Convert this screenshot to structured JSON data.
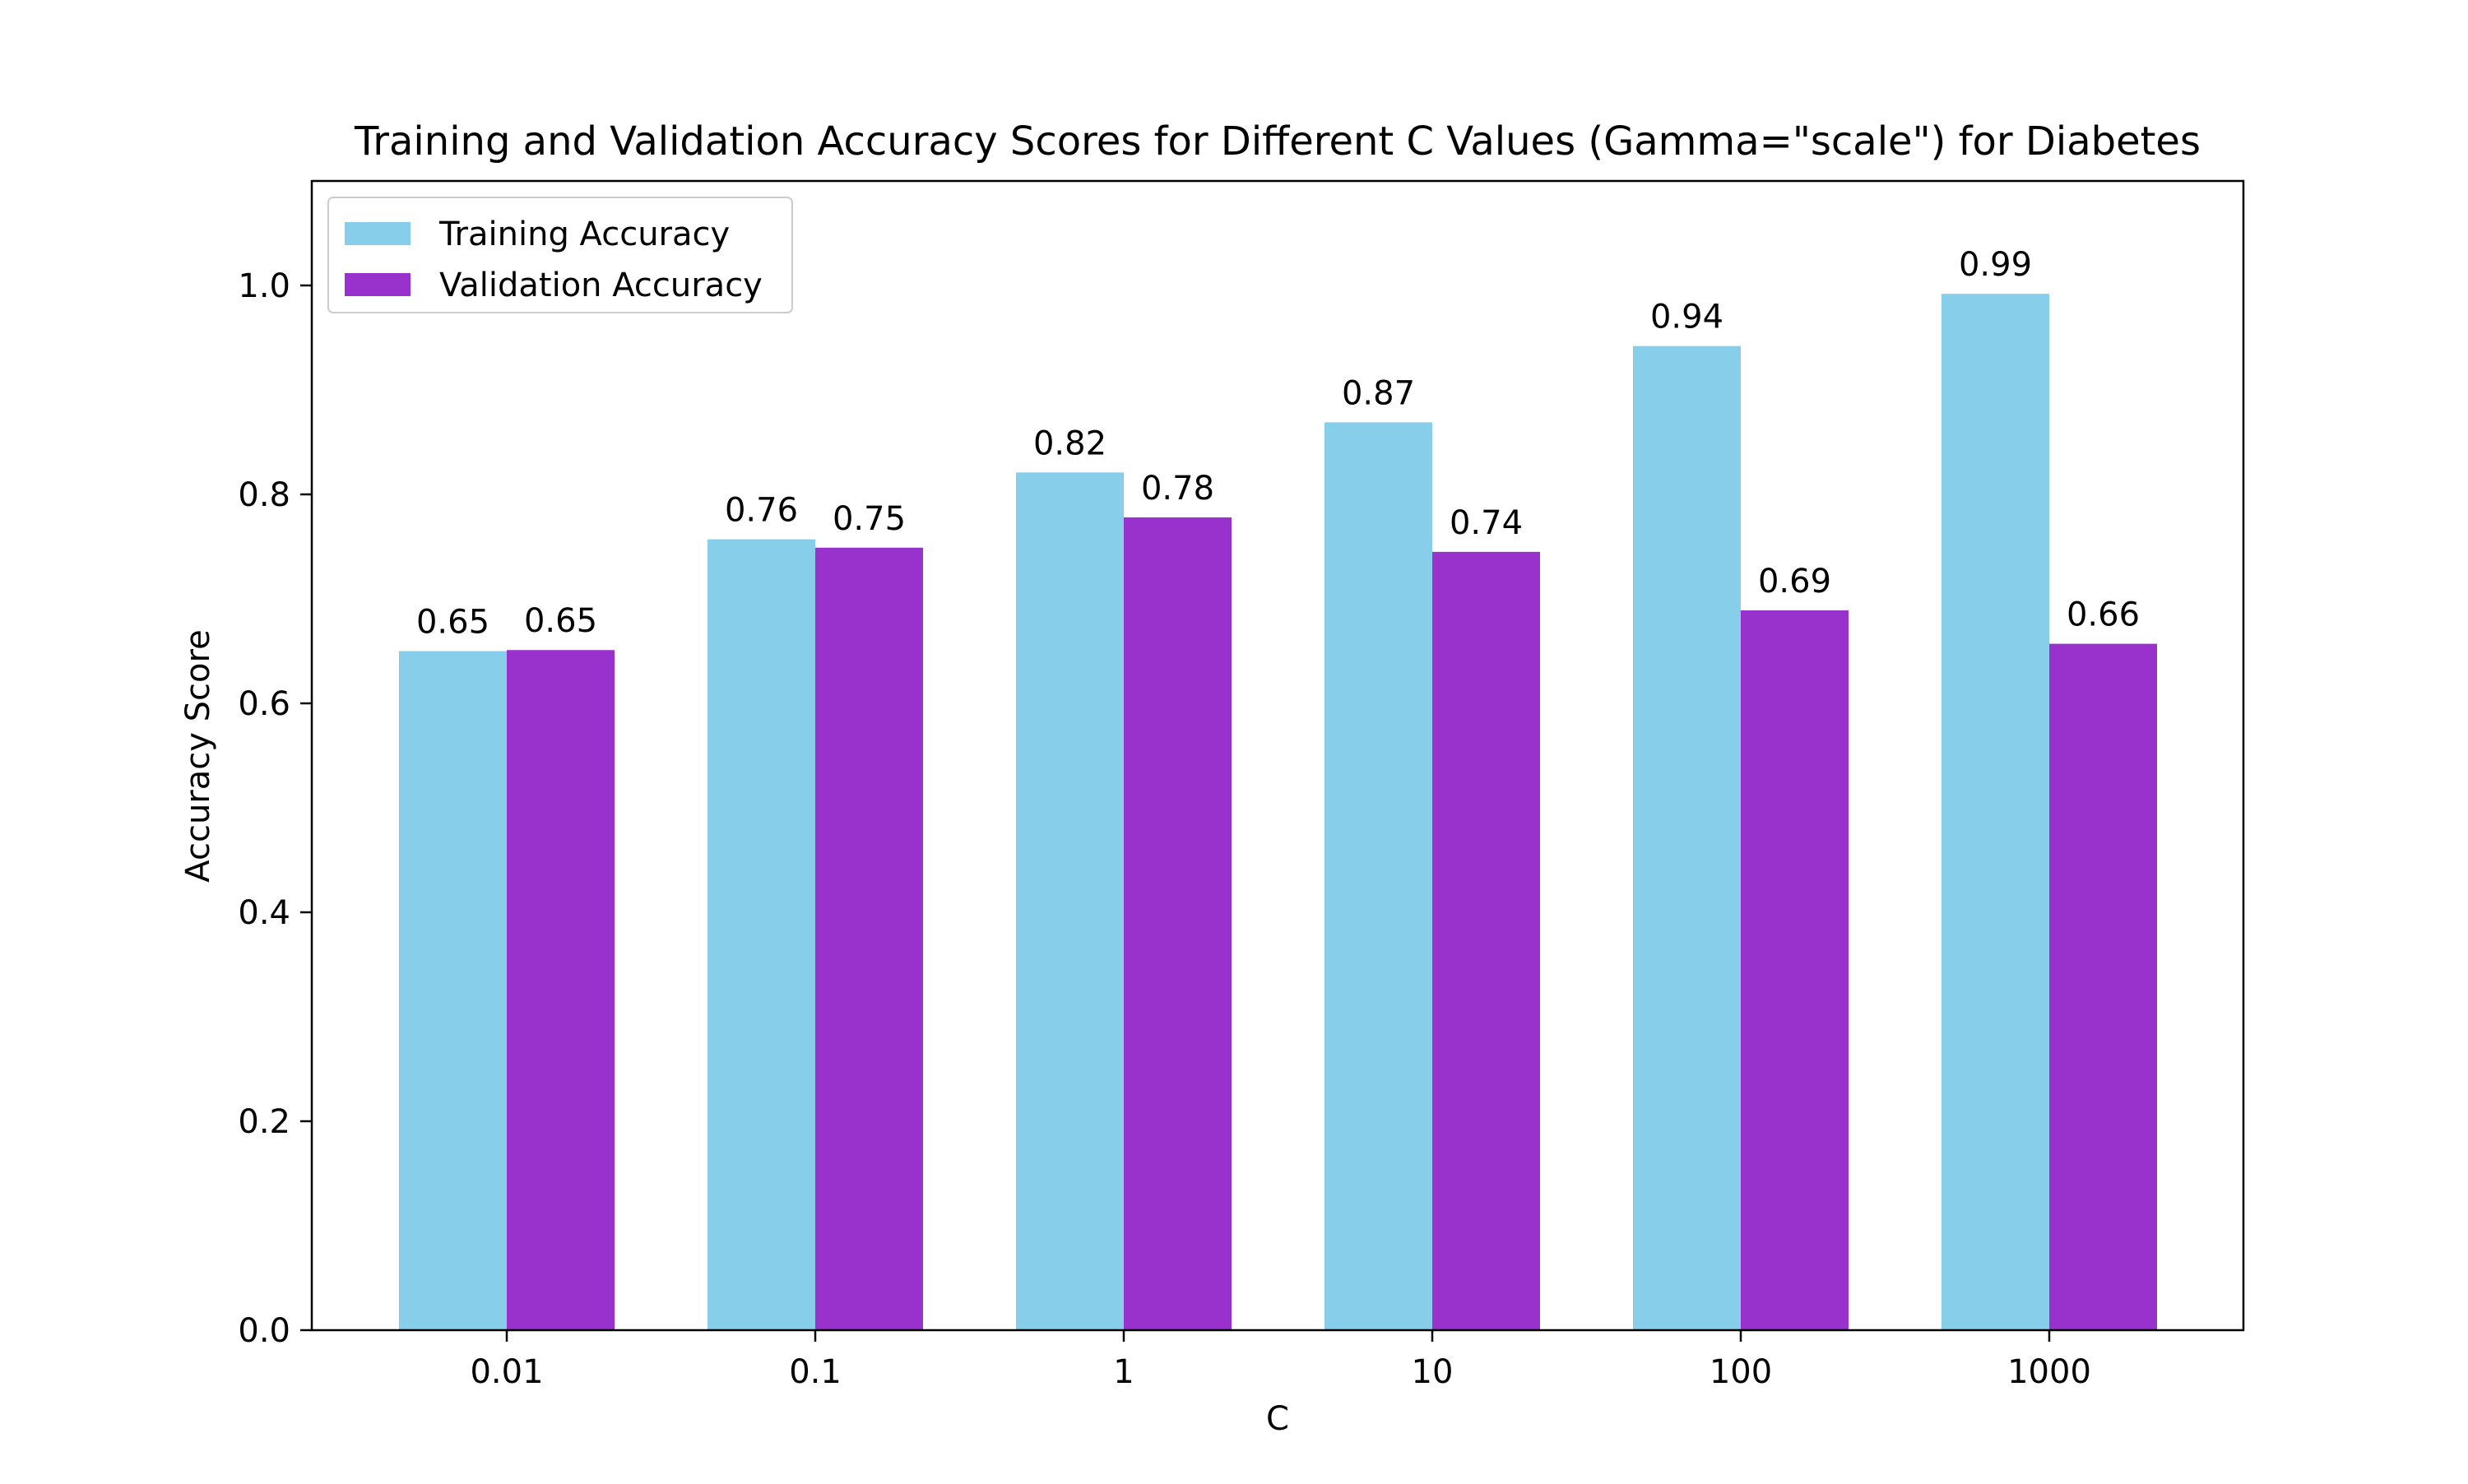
{
  "chart_data": {
    "type": "bar",
    "title": "Training and Validation Accuracy Scores for Different C Values (Gamma=\"scale\") for Diabetes",
    "xlabel": "C",
    "ylabel": "Accuracy Score",
    "categories": [
      "0.01",
      "0.1",
      "1",
      "10",
      "100",
      "1000"
    ],
    "series": [
      {
        "name": "Training Accuracy",
        "color": "#87CEEB",
        "values": [
          0.65,
          0.757,
          0.821,
          0.869,
          0.942,
          0.992
        ],
        "labels": [
          "0.65",
          "0.76",
          "0.82",
          "0.87",
          "0.94",
          "0.99"
        ]
      },
      {
        "name": "Validation Accuracy",
        "color": "#9932CC",
        "values": [
          0.651,
          0.749,
          0.778,
          0.745,
          0.689,
          0.657
        ],
        "labels": [
          "0.65",
          "0.75",
          "0.78",
          "0.74",
          "0.69",
          "0.66"
        ]
      }
    ],
    "ylim": [
      0,
      1.1
    ],
    "yticks": [
      0.0,
      0.2,
      0.4,
      0.6,
      0.8,
      1.0
    ],
    "ytick_labels": [
      "0.0",
      "0.2",
      "0.4",
      "0.6",
      "0.8",
      "1.0"
    ],
    "grid": false,
    "legend": "top-left"
  }
}
